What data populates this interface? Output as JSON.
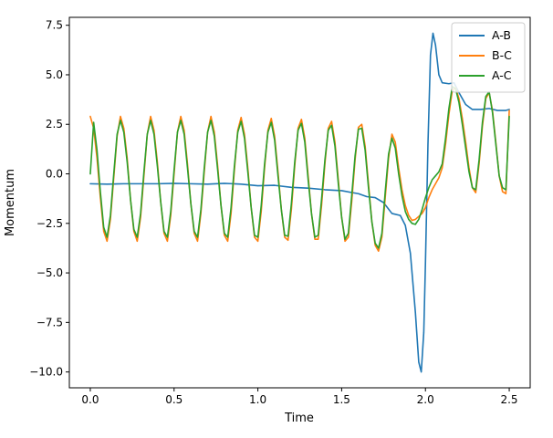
{
  "chart_data": {
    "type": "line",
    "title": "",
    "xlabel": "Time",
    "ylabel": "Momentum",
    "xlim": [
      -0.125,
      2.625
    ],
    "ylim": [
      -10.8,
      7.9
    ],
    "x_ticks": [
      0.0,
      0.5,
      1.0,
      1.5,
      2.0,
      2.5
    ],
    "x_tick_labels": [
      "0.0",
      "0.5",
      "1.0",
      "1.5",
      "2.0",
      "2.5"
    ],
    "y_ticks": [
      7.5,
      5.0,
      2.5,
      0.0,
      -2.5,
      -5.0,
      -7.5,
      -10.0
    ],
    "y_tick_labels": [
      "7.5",
      "5.0",
      "2.5",
      "0.0",
      "−2.5",
      "−5.0",
      "−7.5",
      "−10.0"
    ],
    "grid": false,
    "legend_position": "top-right",
    "series": [
      {
        "name": "A-B",
        "color": "#1f77b4",
        "x": [
          0.0,
          0.1,
          0.2,
          0.3,
          0.4,
          0.5,
          0.6,
          0.7,
          0.8,
          0.9,
          1.0,
          1.1,
          1.2,
          1.3,
          1.4,
          1.5,
          1.6,
          1.65,
          1.7,
          1.75,
          1.8,
          1.85,
          1.88,
          1.91,
          1.94,
          1.96,
          1.975,
          1.99,
          2.0,
          2.015,
          2.03,
          2.045,
          2.06,
          2.08,
          2.1,
          2.14,
          2.17,
          2.2,
          2.24,
          2.28,
          2.33,
          2.38,
          2.43,
          2.48,
          2.5
        ],
        "y": [
          -0.5,
          -0.52,
          -0.5,
          -0.5,
          -0.5,
          -0.48,
          -0.5,
          -0.52,
          -0.48,
          -0.52,
          -0.6,
          -0.58,
          -0.68,
          -0.72,
          -0.8,
          -0.85,
          -1.0,
          -1.15,
          -1.2,
          -1.45,
          -2.0,
          -2.1,
          -2.6,
          -4.0,
          -7.0,
          -9.5,
          -10.0,
          -8.0,
          -4.5,
          1.5,
          6.0,
          7.1,
          6.5,
          5.0,
          4.6,
          4.55,
          4.6,
          4.1,
          3.5,
          3.25,
          3.25,
          3.3,
          3.2,
          3.2,
          3.25
        ]
      },
      {
        "name": "B-C",
        "color": "#ff7f0e",
        "x": [
          0.0,
          0.02,
          0.04,
          0.06,
          0.08,
          0.1,
          0.12,
          0.14,
          0.16,
          0.18,
          0.2,
          0.22,
          0.24,
          0.26,
          0.28,
          0.3,
          0.32,
          0.34,
          0.36,
          0.38,
          0.4,
          0.42,
          0.44,
          0.46,
          0.48,
          0.5,
          0.52,
          0.54,
          0.56,
          0.58,
          0.6,
          0.62,
          0.64,
          0.66,
          0.68,
          0.7,
          0.72,
          0.74,
          0.76,
          0.78,
          0.8,
          0.82,
          0.84,
          0.86,
          0.88,
          0.9,
          0.92,
          0.94,
          0.96,
          0.98,
          1.0,
          1.02,
          1.04,
          1.06,
          1.08,
          1.1,
          1.12,
          1.14,
          1.16,
          1.18,
          1.2,
          1.22,
          1.24,
          1.26,
          1.28,
          1.3,
          1.32,
          1.34,
          1.36,
          1.38,
          1.4,
          1.42,
          1.44,
          1.46,
          1.48,
          1.5,
          1.52,
          1.54,
          1.56,
          1.58,
          1.6,
          1.62,
          1.64,
          1.66,
          1.68,
          1.7,
          1.72,
          1.74,
          1.76,
          1.78,
          1.8,
          1.82,
          1.84,
          1.86,
          1.88,
          1.9,
          1.92,
          1.94,
          1.96,
          1.98,
          2.0,
          2.02,
          2.04,
          2.06,
          2.08,
          2.1,
          2.12,
          2.14,
          2.16,
          2.18,
          2.2,
          2.22,
          2.24,
          2.26,
          2.28,
          2.3,
          2.32,
          2.34,
          2.36,
          2.38,
          2.4,
          2.42,
          2.44,
          2.46,
          2.48,
          2.5
        ],
        "y": [
          2.9,
          2.3,
          0.8,
          -1.2,
          -2.9,
          -3.4,
          -2.3,
          -0.2,
          1.9,
          2.9,
          2.3,
          0.8,
          -1.3,
          -2.9,
          -3.4,
          -2.2,
          -0.1,
          2.0,
          2.9,
          2.2,
          0.6,
          -1.4,
          -3.0,
          -3.4,
          -2.1,
          0.0,
          2.1,
          2.9,
          2.2,
          0.5,
          -1.5,
          -3.0,
          -3.4,
          -2.0,
          0.1,
          2.1,
          2.9,
          2.1,
          0.4,
          -1.6,
          -3.1,
          -3.4,
          -2.0,
          0.2,
          2.2,
          2.85,
          2.0,
          0.3,
          -1.7,
          -3.2,
          -3.4,
          -1.9,
          0.3,
          2.2,
          2.8,
          1.9,
          0.1,
          -1.8,
          -3.2,
          -3.35,
          -1.8,
          0.4,
          2.3,
          2.75,
          1.8,
          -0.1,
          -2.0,
          -3.3,
          -3.3,
          -1.6,
          0.5,
          2.3,
          2.65,
          1.6,
          -0.3,
          -2.2,
          -3.4,
          -3.2,
          -1.4,
          0.7,
          2.35,
          2.5,
          1.4,
          -0.5,
          -2.4,
          -3.6,
          -3.9,
          -3.2,
          -1.2,
          0.8,
          2.0,
          1.6,
          0.3,
          -0.8,
          -1.6,
          -2.1,
          -2.35,
          -2.3,
          -2.15,
          -2.0,
          -1.7,
          -1.2,
          -0.8,
          -0.5,
          -0.2,
          0.3,
          1.5,
          3.0,
          4.2,
          4.35,
          3.8,
          2.8,
          1.6,
          0.3,
          -0.7,
          -0.95,
          0.5,
          2.4,
          3.8,
          4.1,
          3.2,
          1.6,
          -0.1,
          -0.9,
          -1.0,
          3.2
        ]
      },
      {
        "name": "A-C",
        "color": "#2ca02c",
        "x": [
          0.0,
          0.02,
          0.04,
          0.06,
          0.08,
          0.1,
          0.12,
          0.14,
          0.16,
          0.18,
          0.2,
          0.22,
          0.24,
          0.26,
          0.28,
          0.3,
          0.32,
          0.34,
          0.36,
          0.38,
          0.4,
          0.42,
          0.44,
          0.46,
          0.48,
          0.5,
          0.52,
          0.54,
          0.56,
          0.58,
          0.6,
          0.62,
          0.64,
          0.66,
          0.68,
          0.7,
          0.72,
          0.74,
          0.76,
          0.78,
          0.8,
          0.82,
          0.84,
          0.86,
          0.88,
          0.9,
          0.92,
          0.94,
          0.96,
          0.98,
          1.0,
          1.02,
          1.04,
          1.06,
          1.08,
          1.1,
          1.12,
          1.14,
          1.16,
          1.18,
          1.2,
          1.22,
          1.24,
          1.26,
          1.28,
          1.3,
          1.32,
          1.34,
          1.36,
          1.38,
          1.4,
          1.42,
          1.44,
          1.46,
          1.48,
          1.5,
          1.52,
          1.54,
          1.56,
          1.58,
          1.6,
          1.62,
          1.64,
          1.66,
          1.68,
          1.7,
          1.72,
          1.74,
          1.76,
          1.78,
          1.8,
          1.82,
          1.84,
          1.86,
          1.88,
          1.9,
          1.92,
          1.94,
          1.96,
          1.98,
          2.0,
          2.02,
          2.04,
          2.06,
          2.08,
          2.1,
          2.12,
          2.14,
          2.16,
          2.18,
          2.2,
          2.22,
          2.24,
          2.26,
          2.28,
          2.3,
          2.32,
          2.34,
          2.36,
          2.38,
          2.4,
          2.42,
          2.44,
          2.46,
          2.48,
          2.5
        ],
        "y": [
          0.0,
          2.6,
          1.2,
          -0.9,
          -2.7,
          -3.2,
          -2.1,
          0.0,
          2.0,
          2.7,
          2.1,
          0.6,
          -1.3,
          -2.8,
          -3.2,
          -2.0,
          0.1,
          2.0,
          2.7,
          2.0,
          0.4,
          -1.4,
          -2.9,
          -3.2,
          -1.9,
          0.2,
          2.1,
          2.7,
          2.0,
          0.3,
          -1.5,
          -2.9,
          -3.2,
          -1.8,
          0.3,
          2.1,
          2.7,
          1.9,
          0.2,
          -1.6,
          -3.0,
          -3.2,
          -1.7,
          0.4,
          2.1,
          2.65,
          1.8,
          0.1,
          -1.7,
          -3.1,
          -3.2,
          -1.6,
          0.5,
          2.1,
          2.6,
          1.7,
          -0.1,
          -1.8,
          -3.1,
          -3.15,
          -1.5,
          0.6,
          2.2,
          2.55,
          1.6,
          -0.3,
          -2.0,
          -3.2,
          -3.1,
          -1.3,
          0.7,
          2.2,
          2.45,
          1.4,
          -0.5,
          -2.2,
          -3.3,
          -3.0,
          -1.1,
          0.9,
          2.25,
          2.3,
          1.2,
          -0.7,
          -2.4,
          -3.5,
          -3.75,
          -3.0,
          -0.9,
          1.0,
          1.8,
          1.3,
          0.0,
          -1.1,
          -1.9,
          -2.3,
          -2.5,
          -2.55,
          -2.3,
          -1.8,
          -1.2,
          -0.7,
          -0.3,
          -0.1,
          0.1,
          0.5,
          1.8,
          3.3,
          4.4,
          4.3,
          3.6,
          2.5,
          1.3,
          0.1,
          -0.7,
          -0.8,
          0.7,
          2.6,
          3.9,
          4.15,
          3.1,
          1.5,
          -0.1,
          -0.7,
          -0.8,
          2.9
        ]
      }
    ]
  }
}
